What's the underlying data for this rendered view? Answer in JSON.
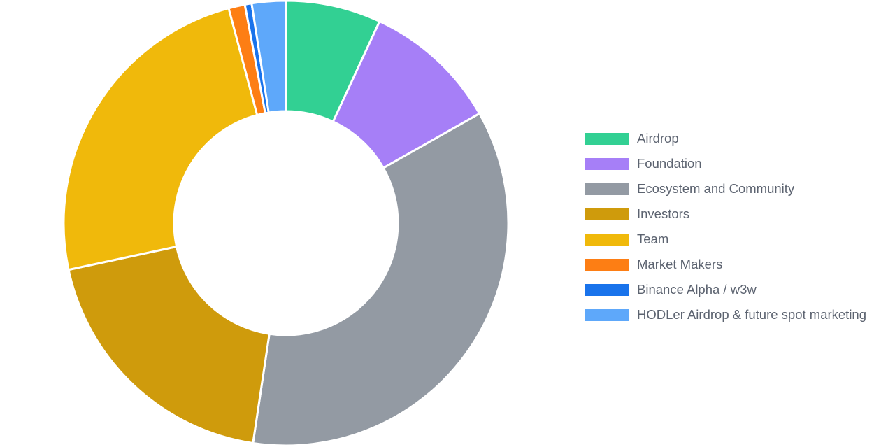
{
  "chart_data": {
    "type": "pie",
    "variant": "donut",
    "title": "",
    "legend_position": "right",
    "categories": [
      "Airdrop",
      "Foundation",
      "Ecosystem and Community",
      "Investors",
      "Team",
      "Market Makers",
      "Binance Alpha / w3w",
      "HODLer Airdrop & future spot marketing"
    ],
    "values": [
      7.0,
      10.0,
      36.0,
      19.5,
      24.5,
      1.2,
      0.5,
      2.5
    ],
    "colors": [
      "#32d093",
      "#a67ff7",
      "#939aa3",
      "#cf9b0c",
      "#f0b90b",
      "#fd7e14",
      "#1973eb",
      "#5ea8fa"
    ]
  }
}
